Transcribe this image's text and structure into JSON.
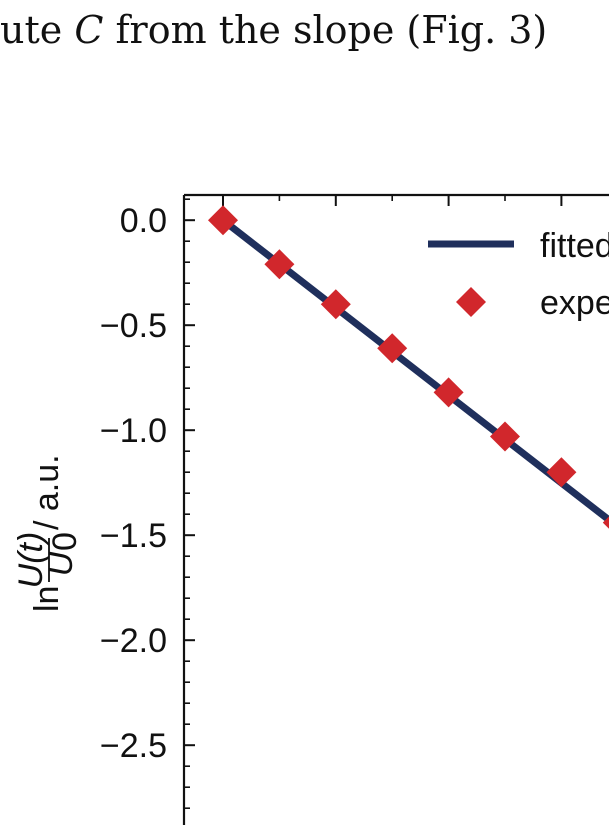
{
  "caption": {
    "prefix": "ute ",
    "symbol": "C",
    "suffix": " from the slope (Fig. 3)"
  },
  "chart_data": {
    "type": "scatter",
    "ylabel_prefix": "ln",
    "ylabel_num": "U(t)",
    "ylabel_den": "U",
    "ylabel_den_sub": "0",
    "ylabel_unit": "/ a.u.",
    "ylim": [
      -2.88,
      0.12
    ],
    "y_ticks": [
      0.0,
      -0.5,
      -1.0,
      -1.5,
      -2.0,
      -2.5
    ],
    "y_tick_labels": [
      "0.0",
      "−0.5",
      "−1.0",
      "−1.5",
      "−2.0",
      "−2.5"
    ],
    "legend": {
      "placement": "top-right",
      "entries": [
        "fitted",
        "expe"
      ]
    },
    "series": [
      {
        "name": "fitted",
        "kind": "line",
        "color": "#1f2f5c",
        "x": [
          0,
          7
        ],
        "y": [
          0.0,
          -1.46
        ]
      },
      {
        "name": "expe",
        "kind": "marker",
        "marker": "diamond",
        "color": "#d1272c",
        "x": [
          0,
          1,
          2,
          3,
          4,
          5,
          6,
          7
        ],
        "y": [
          0.0,
          -0.21,
          -0.4,
          -0.61,
          -0.82,
          -1.03,
          -1.2,
          -1.44
        ]
      }
    ]
  }
}
